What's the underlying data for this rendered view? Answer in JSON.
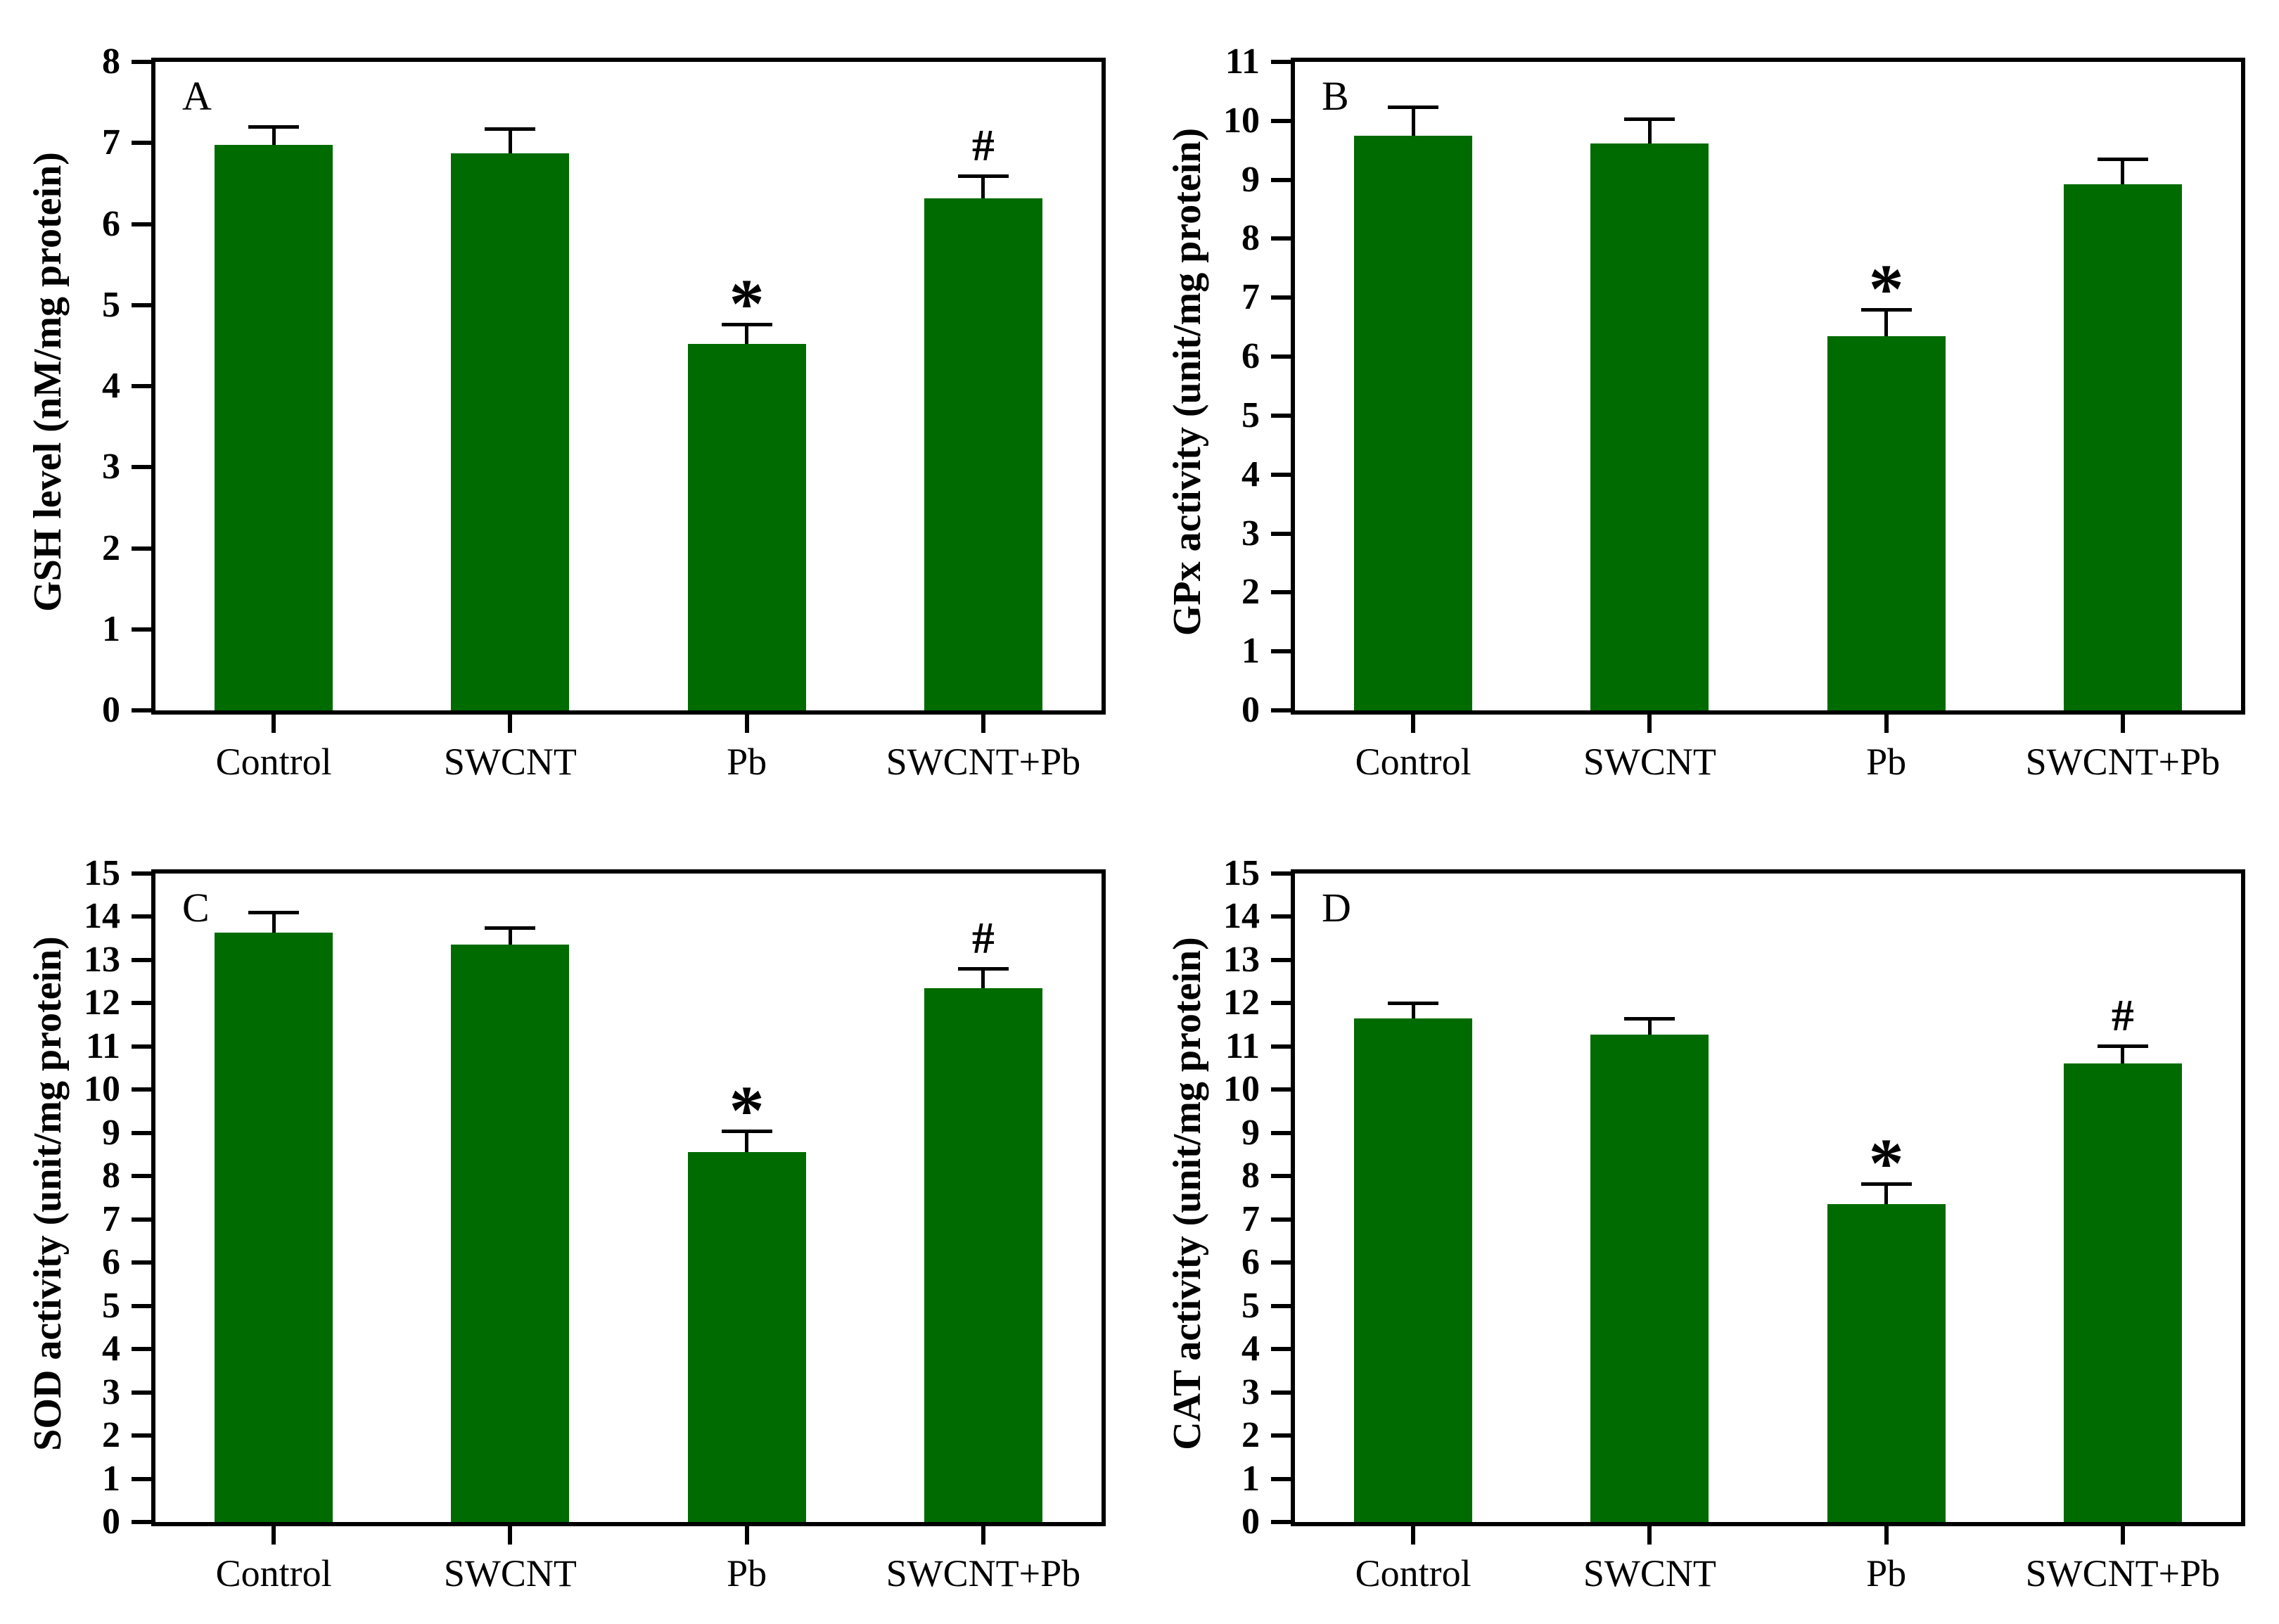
{
  "figure": {
    "bar_color": "#006B00",
    "axis_color": "#000000",
    "background": "#ffffff",
    "significance_symbols": {
      "decrease_vs_control": "*",
      "recovery_vs_pb": "#"
    }
  },
  "chart_data": [
    {
      "type": "bar",
      "panel_letter": "A",
      "ylabel": "GSH level (nM/mg protein)",
      "xlabel": "",
      "categories": [
        "Control",
        "SWCNT",
        "Pb",
        "SWCNT+Pb"
      ],
      "values": [
        6.98,
        6.87,
        4.52,
        6.32
      ],
      "errors": [
        0.2,
        0.28,
        0.22,
        0.25
      ],
      "annotations": [
        "",
        "",
        "*",
        "#"
      ],
      "ylim": [
        0,
        8
      ],
      "ytick_step": 1,
      "grid": false,
      "legend": "none",
      "bar_color": "#006B00"
    },
    {
      "type": "bar",
      "panel_letter": "B",
      "ylabel": "GPx activity (unit/mg protein)",
      "xlabel": "",
      "categories": [
        "Control",
        "SWCNT",
        "Pb",
        "SWCNT+Pb"
      ],
      "values": [
        9.75,
        9.62,
        6.35,
        8.92
      ],
      "errors": [
        0.45,
        0.38,
        0.42,
        0.4
      ],
      "annotations": [
        "",
        "",
        "*",
        ""
      ],
      "ylim": [
        0,
        11
      ],
      "ytick_step": 1,
      "grid": false,
      "legend": "none",
      "bar_color": "#006B00"
    },
    {
      "type": "bar",
      "panel_letter": "C",
      "ylabel": "SOD activity (unit/mg protein)",
      "xlabel": "",
      "categories": [
        "Control",
        "SWCNT",
        "Pb",
        "SWCNT+Pb"
      ],
      "values": [
        13.63,
        13.35,
        8.55,
        12.35
      ],
      "errors": [
        0.43,
        0.35,
        0.45,
        0.4
      ],
      "annotations": [
        "",
        "",
        "*",
        "#"
      ],
      "ylim": [
        0,
        15
      ],
      "ytick_step": 1,
      "grid": false,
      "legend": "none",
      "bar_color": "#006B00"
    },
    {
      "type": "bar",
      "panel_letter": "D",
      "ylabel": "CAT activity (unit/mg protein)",
      "xlabel": "",
      "categories": [
        "Control",
        "SWCNT",
        "Pb",
        "SWCNT+Pb"
      ],
      "values": [
        11.65,
        11.27,
        7.35,
        10.6
      ],
      "errors": [
        0.3,
        0.33,
        0.43,
        0.37
      ],
      "annotations": [
        "",
        "",
        "*",
        "#"
      ],
      "ylim": [
        0,
        15
      ],
      "ytick_step": 1,
      "grid": false,
      "legend": "none",
      "bar_color": "#006B00"
    }
  ]
}
